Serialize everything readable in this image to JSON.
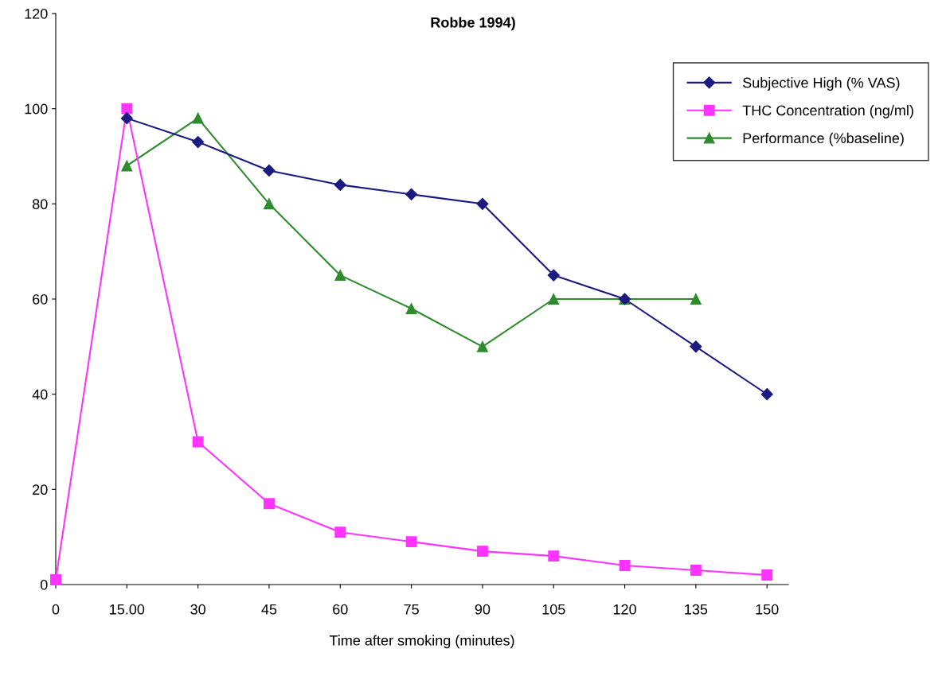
{
  "chart_data": {
    "type": "line",
    "title": "Robbe 1994)",
    "xlabel": "Time after smoking (minutes)",
    "categories": [
      "0",
      "15.00",
      "30",
      "45",
      "60",
      "75",
      "90",
      "105",
      "120",
      "135",
      "150"
    ],
    "series": [
      {
        "name": "Subjective High (% VAS)",
        "color": "#1a1a80",
        "marker": "diamond",
        "values": [
          null,
          98,
          93,
          87,
          84,
          82,
          80,
          65,
          60,
          50,
          40
        ]
      },
      {
        "name": "THC Concentration (ng/ml)",
        "color": "#ff33ff",
        "marker": "square",
        "values": [
          1,
          100,
          30,
          17,
          11,
          9,
          7,
          6,
          4,
          3,
          2
        ]
      },
      {
        "name": "Performance (%baseline)",
        "color": "#2e8b2e",
        "marker": "triangle",
        "values": [
          null,
          88,
          98,
          80,
          65,
          58,
          50,
          60,
          60,
          60,
          null
        ]
      }
    ],
    "ylim": [
      0,
      120
    ],
    "yticks": [
      0,
      20,
      40,
      60,
      80,
      100,
      120
    ],
    "grid": false,
    "legend": "top right"
  }
}
